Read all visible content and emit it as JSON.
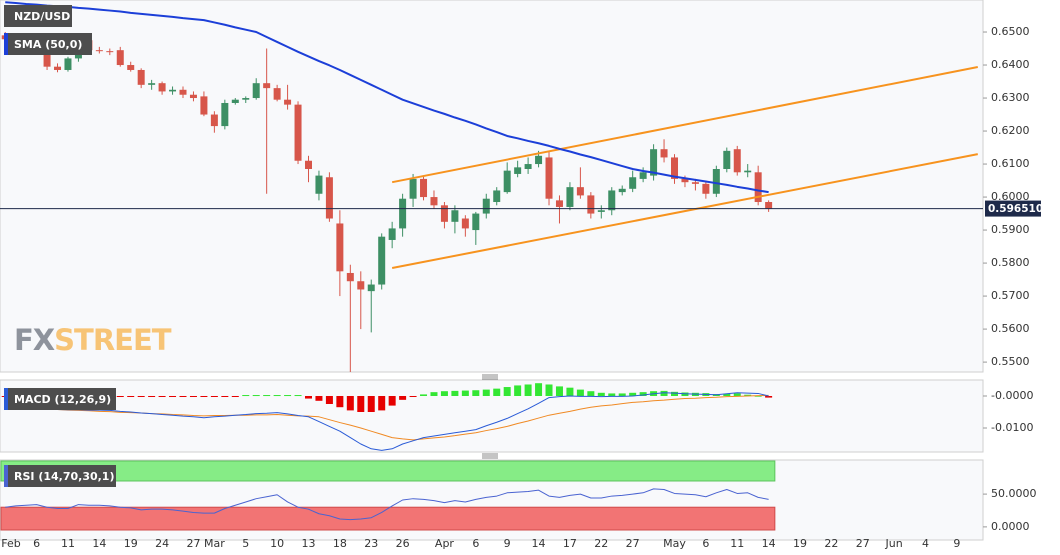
{
  "chart_data": [
    {
      "type": "candlestick",
      "title": "NZD/USD",
      "categories": [
        "Feb",
        null,
        null,
        "6",
        null,
        null,
        "11",
        null,
        null,
        "14",
        null,
        null,
        "19",
        null,
        null,
        "24",
        null,
        null,
        "27",
        null,
        "Mar",
        null,
        null,
        "5",
        null,
        null,
        "10",
        null,
        null,
        "13",
        null,
        null,
        "18",
        null,
        null,
        "23",
        null,
        null,
        "26",
        null,
        null,
        null,
        "Apr",
        null,
        null,
        "6",
        null,
        null,
        "9",
        null,
        null,
        "14",
        null,
        null,
        "17",
        null,
        null,
        "22",
        null,
        null,
        "27",
        null,
        null,
        null,
        "May",
        null,
        null,
        "6",
        null,
        null,
        "11",
        null,
        null,
        "14",
        null,
        null,
        "19",
        null,
        null,
        "22",
        null,
        null,
        "27",
        null,
        null,
        "Jun",
        null,
        null,
        "4",
        null,
        null,
        "9",
        null,
        null
      ],
      "open": [
        0.649,
        0.6478,
        0.649,
        0.647,
        0.6445,
        0.6395,
        0.6385,
        0.642,
        0.6475,
        0.6445,
        0.6442,
        0.6445,
        0.64,
        0.6385,
        0.634,
        0.6345,
        0.632,
        0.6325,
        0.631,
        0.6305,
        0.625,
        0.6215,
        0.6285,
        0.6295,
        0.63,
        0.6345,
        0.633,
        0.6295,
        0.628,
        0.611,
        0.601,
        0.606,
        0.592,
        0.577,
        0.5745,
        0.5715,
        0.5735,
        0.587,
        0.5905,
        0.5995,
        0.6055,
        0.6,
        0.5975,
        0.5925,
        0.5935,
        0.59,
        0.595,
        0.5985,
        0.6015,
        0.607,
        0.6085,
        0.61,
        0.612,
        0.599,
        0.597,
        0.603,
        0.6005,
        0.5955,
        0.596,
        0.6015,
        0.6025,
        0.6055,
        0.6065,
        0.6145,
        0.612,
        0.6055,
        0.6045,
        0.604,
        0.601,
        0.6085,
        0.6145,
        0.6075,
        0.6075,
        0.5985,
        null,
        null,
        null,
        null,
        null,
        null,
        null,
        null,
        null,
        null,
        null,
        null,
        null,
        null,
        null,
        null,
        null,
        null,
        null,
        null
      ],
      "high": [
        0.65,
        0.6495,
        0.6495,
        0.648,
        0.645,
        0.6405,
        0.6425,
        0.6495,
        0.648,
        0.6455,
        0.645,
        0.6455,
        0.641,
        0.639,
        0.6355,
        0.635,
        0.6335,
        0.6335,
        0.632,
        0.632,
        0.626,
        0.6295,
        0.63,
        0.6305,
        0.636,
        0.645,
        0.634,
        0.634,
        0.629,
        0.6125,
        0.608,
        0.6075,
        0.596,
        0.5795,
        0.5775,
        0.575,
        0.589,
        0.5925,
        0.601,
        0.607,
        0.6065,
        0.602,
        0.5985,
        0.5975,
        0.5945,
        0.5955,
        0.601,
        0.603,
        0.6105,
        0.611,
        0.612,
        0.614,
        0.614,
        0.6005,
        0.6045,
        0.609,
        0.6015,
        0.5975,
        0.603,
        0.6035,
        0.608,
        0.609,
        0.616,
        0.6175,
        0.613,
        0.6065,
        0.6055,
        0.605,
        0.6095,
        0.615,
        0.6155,
        0.61,
        0.6095,
        0.599,
        null,
        null,
        null,
        null,
        null,
        null,
        null,
        null,
        null,
        null,
        null,
        null,
        null,
        null,
        null,
        null,
        null,
        null,
        null,
        null
      ],
      "low": [
        0.647,
        0.647,
        0.6465,
        0.644,
        0.6385,
        0.6378,
        0.638,
        0.641,
        0.644,
        0.6435,
        0.643,
        0.6395,
        0.638,
        0.633,
        0.6325,
        0.631,
        0.631,
        0.63,
        0.629,
        0.6245,
        0.6195,
        0.6205,
        0.628,
        0.6285,
        0.6295,
        0.601,
        0.629,
        0.6265,
        0.61,
        0.6045,
        0.599,
        0.5925,
        0.57,
        0.547,
        0.56,
        0.559,
        0.572,
        0.5845,
        0.588,
        0.597,
        0.599,
        0.5965,
        0.5905,
        0.589,
        0.588,
        0.5855,
        0.5935,
        0.5975,
        0.601,
        0.606,
        0.607,
        0.609,
        0.5975,
        0.592,
        0.596,
        0.5995,
        0.5935,
        0.5935,
        0.5945,
        0.6005,
        0.6015,
        0.6045,
        0.605,
        0.6105,
        0.604,
        0.603,
        0.602,
        0.5995,
        0.6,
        0.6075,
        0.6065,
        0.606,
        0.5975,
        0.5955,
        null,
        null,
        null,
        null,
        null,
        null,
        null,
        null,
        null,
        null,
        null,
        null,
        null,
        null,
        null,
        null,
        null,
        null,
        null,
        null
      ],
      "close": [
        0.6478,
        0.649,
        0.647,
        0.6445,
        0.6395,
        0.6385,
        0.642,
        0.6475,
        0.6445,
        0.6442,
        0.644,
        0.64,
        0.6385,
        0.634,
        0.6345,
        0.632,
        0.6325,
        0.631,
        0.63,
        0.625,
        0.6215,
        0.6285,
        0.6295,
        0.63,
        0.6345,
        0.633,
        0.6295,
        0.628,
        0.611,
        0.6085,
        0.6065,
        0.5935,
        0.5775,
        0.5745,
        0.572,
        0.5735,
        0.588,
        0.5905,
        0.5995,
        0.6055,
        0.6,
        0.5975,
        0.5925,
        0.596,
        0.5905,
        0.595,
        0.5995,
        0.602,
        0.608,
        0.609,
        0.61,
        0.6125,
        0.5995,
        0.597,
        0.603,
        0.6005,
        0.595,
        0.596,
        0.602,
        0.6025,
        0.606,
        0.6075,
        0.6145,
        0.612,
        0.6055,
        0.6045,
        0.604,
        0.601,
        0.6085,
        0.614,
        0.6075,
        0.608,
        0.5985,
        0.59651,
        null,
        null,
        null,
        null,
        null,
        null,
        null,
        null,
        null,
        null,
        null,
        null,
        null,
        null,
        null,
        null,
        null,
        null,
        null,
        null
      ],
      "up_color": "#3d8f64",
      "down_color": "#d7564a",
      "ylim": [
        0.547,
        0.6597
      ],
      "yticks": [
        {
          "value": 0.55,
          "label": "0.5500"
        },
        {
          "value": 0.56,
          "label": "0.5600"
        },
        {
          "value": 0.57,
          "label": "0.5700"
        },
        {
          "value": 0.58,
          "label": "0.5800"
        },
        {
          "value": 0.59,
          "label": "0.5900"
        },
        {
          "value": 0.6,
          "label": "0.6000"
        },
        {
          "value": 0.61,
          "label": "0.6100"
        },
        {
          "value": 0.62,
          "label": "0.6200"
        },
        {
          "value": 0.63,
          "label": "0.6300"
        },
        {
          "value": 0.64,
          "label": "0.6400"
        },
        {
          "value": 0.65,
          "label": "0.6500"
        }
      ],
      "last_price": {
        "value": 0.59651,
        "label": "0.596510"
      },
      "sma": {
        "name": "SMA (50,0)",
        "color": "#1c3fd8",
        "values": [
          0.659,
          0.6588,
          0.6585,
          0.6583,
          0.658,
          0.6578,
          0.6576,
          0.6573,
          0.6571,
          0.6568,
          0.6565,
          0.6562,
          0.6558,
          0.6555,
          0.6552,
          0.6549,
          0.6546,
          0.6542,
          0.6539,
          0.6536,
          0.6529,
          0.6522,
          0.6514,
          0.6507,
          0.65,
          0.6485,
          0.647,
          0.6455,
          0.644,
          0.6426,
          0.6412,
          0.6399,
          0.6385,
          0.637,
          0.6355,
          0.634,
          0.6325,
          0.631,
          0.6295,
          0.6284,
          0.6273,
          0.6262,
          0.6252,
          0.6241,
          0.6231,
          0.622,
          0.6208,
          0.6197,
          0.6185,
          0.6178,
          0.617,
          0.6163,
          0.6155,
          0.6146,
          0.6138,
          0.6129,
          0.6121,
          0.6112,
          0.6103,
          0.6094,
          0.6085,
          0.6079,
          0.6074,
          0.6068,
          0.6062,
          0.6057,
          0.6052,
          0.6047,
          0.6042,
          0.6037,
          0.6031,
          0.6026,
          0.602,
          0.6015,
          null,
          null,
          null,
          null,
          null,
          null,
          null,
          null,
          null,
          null,
          null,
          null,
          null,
          null,
          null,
          null,
          null,
          null,
          null,
          null
        ]
      },
      "trendlines": [
        {
          "color": "#f7931e",
          "start": {
            "index": 37,
            "value": 0.6045
          },
          "end": {
            "index": 93,
            "value": 0.6394
          }
        },
        {
          "color": "#f7931e",
          "start": {
            "index": 37,
            "value": 0.5785
          },
          "end": {
            "index": 93,
            "value": 0.613
          }
        }
      ],
      "watermark": [
        "FX",
        "STREET"
      ]
    },
    {
      "type": "macd",
      "name": "MACD (12,26,9)",
      "ylim": [
        -0.0175,
        0.005
      ],
      "yticks": [
        {
          "value": -0.01,
          "label": "-0.0100"
        },
        {
          "value": 0,
          "label": "-0.0000"
        }
      ],
      "histogram": {
        "positive_color": "#33e633",
        "negative_color": "#e60000",
        "values": [
          -0.0003,
          -0.0003,
          -0.0003,
          -0.0003,
          -0.0003,
          -0.0003,
          -0.0003,
          -0.0003,
          -0.0003,
          -0.0003,
          -0.0003,
          -0.0003,
          -0.0003,
          -0.0003,
          -0.0003,
          -0.0003,
          -0.0003,
          -0.0003,
          -0.0003,
          -0.0003,
          -0.0003,
          -0.0003,
          -0.0003,
          0.0003,
          0.0003,
          0.0003,
          0.0003,
          0.0003,
          0.0003,
          -0.0008,
          -0.0015,
          -0.0025,
          -0.0035,
          -0.0045,
          -0.005,
          -0.005,
          -0.0045,
          -0.003,
          -0.0012,
          -0.0003,
          0.0005,
          0.0012,
          0.0015,
          0.0016,
          0.0017,
          0.0018,
          0.002,
          0.0023,
          0.0028,
          0.0033,
          0.0036,
          0.004,
          0.0036,
          0.003,
          0.0026,
          0.002,
          0.0015,
          0.001,
          0.0008,
          0.0008,
          0.001,
          0.0012,
          0.0015,
          0.0016,
          0.0013,
          0.0011,
          0.001,
          0.0009,
          0.0006,
          0.0007,
          0.0008,
          0.0004,
          0.0001,
          -0.0005,
          null,
          null,
          null,
          null,
          null,
          null,
          null,
          null,
          null,
          null,
          null,
          null,
          null,
          null,
          null,
          null,
          null,
          null,
          null,
          null
        ]
      },
      "macd": {
        "color": "#2a5bd7",
        "values": [
          -0.004,
          -0.004,
          -0.0041,
          -0.0041,
          -0.0042,
          -0.0042,
          -0.0043,
          -0.0043,
          -0.0044,
          -0.0044,
          -0.0045,
          -0.0048,
          -0.005,
          -0.0053,
          -0.0055,
          -0.0058,
          -0.006,
          -0.0063,
          -0.0065,
          -0.0068,
          -0.0065,
          -0.0063,
          -0.006,
          -0.0058,
          -0.0055,
          -0.0054,
          -0.0052,
          -0.0056,
          -0.0061,
          -0.0065,
          -0.008,
          -0.0095,
          -0.011,
          -0.013,
          -0.015,
          -0.0165,
          -0.017,
          -0.0165,
          -0.015,
          -0.014,
          -0.013,
          -0.0125,
          -0.012,
          -0.0115,
          -0.011,
          -0.0105,
          -0.0093,
          -0.0082,
          -0.007,
          -0.0055,
          -0.004,
          -0.0023,
          -0.0005,
          -0.0002,
          0.0,
          -0.0001,
          -0.0001,
          -0.0002,
          -0.0001,
          -0.0001,
          0.0,
          0.0003,
          0.0007,
          0.001,
          0.0009,
          0.0007,
          0.0006,
          0.0005,
          0.0004,
          0.0007,
          0.001,
          0.0009,
          0.0008,
          0.0,
          null,
          null,
          null,
          null,
          null,
          null,
          null,
          null,
          null,
          null,
          null,
          null,
          null,
          null,
          null,
          null,
          null,
          null,
          null,
          null
        ]
      },
      "signal": {
        "color": "#f08a24",
        "values": [
          -0.0035,
          -0.0036,
          -0.0038,
          -0.0039,
          -0.0041,
          -0.0042,
          -0.0044,
          -0.0045,
          -0.0046,
          -0.0048,
          -0.0049,
          -0.0051,
          -0.0052,
          -0.0053,
          -0.0055,
          -0.0056,
          -0.0058,
          -0.0059,
          -0.0061,
          -0.0062,
          -0.0061,
          -0.0061,
          -0.006,
          -0.006,
          -0.0059,
          -0.0059,
          -0.0058,
          -0.006,
          -0.0062,
          -0.0063,
          -0.0065,
          -0.0074,
          -0.0083,
          -0.0091,
          -0.01,
          -0.011,
          -0.012,
          -0.013,
          -0.0134,
          -0.0137,
          -0.0134,
          -0.0131,
          -0.0128,
          -0.0124,
          -0.0119,
          -0.0115,
          -0.0108,
          -0.0102,
          -0.0095,
          -0.0086,
          -0.0078,
          -0.0069,
          -0.006,
          -0.0054,
          -0.0048,
          -0.0041,
          -0.0035,
          -0.0031,
          -0.0028,
          -0.0024,
          -0.002,
          -0.0018,
          -0.0015,
          -0.0013,
          -0.001,
          -0.0008,
          -0.0007,
          -0.0005,
          -0.0004,
          -0.0002,
          -0.0001,
          0.0,
          0.0001,
          0.0002,
          null,
          null,
          null,
          null,
          null,
          null,
          null,
          null,
          null,
          null,
          null,
          null,
          null,
          null,
          null,
          null,
          null,
          null,
          null,
          null
        ]
      }
    },
    {
      "type": "rsi",
      "name": "RSI (14,70,30,1)",
      "ylim": [
        -20,
        102
      ],
      "yticks": [
        {
          "value": 0,
          "label": "0.0000"
        },
        {
          "value": 50,
          "label": "50.0000"
        }
      ],
      "overbought": 70,
      "oversold": 30,
      "overbought_color": "#86ec86",
      "oversold_color": "#f27474",
      "color": "#4a63d1",
      "values": [
        30,
        32,
        33,
        34,
        30,
        28,
        28,
        34,
        33,
        33,
        32,
        30,
        29,
        26,
        27,
        27,
        26,
        24,
        22,
        21,
        21,
        28,
        33,
        38,
        43,
        46,
        49,
        38,
        30,
        27,
        20,
        17,
        12,
        11,
        12,
        14,
        22,
        32,
        41,
        43,
        42,
        40,
        37,
        40,
        38,
        42,
        45,
        47,
        52,
        53,
        54,
        56,
        47,
        45,
        48,
        50,
        44,
        44,
        47,
        48,
        50,
        52,
        58,
        57,
        51,
        50,
        49,
        46,
        52,
        57,
        51,
        52,
        45,
        42,
        null,
        null,
        null,
        null,
        null,
        null,
        null,
        null,
        null,
        null,
        null,
        null,
        null,
        null,
        null,
        null,
        null,
        null,
        null,
        null
      ]
    }
  ]
}
